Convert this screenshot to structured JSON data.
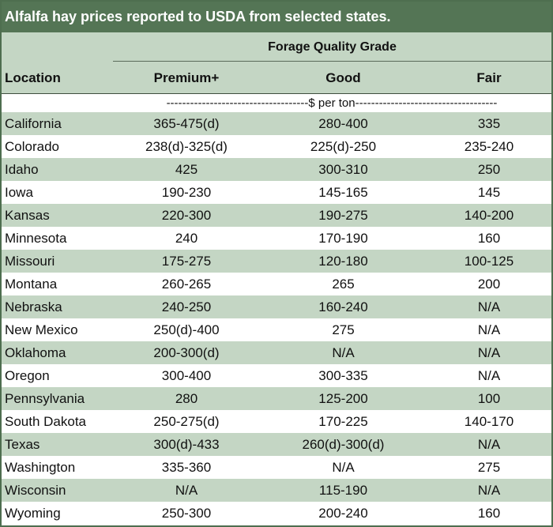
{
  "title": "Alfalfa hay prices reported to USDA from selected states.",
  "header": {
    "group": "Forage Quality Grade",
    "location": "Location",
    "columns": [
      "Premium+",
      "Good",
      "Fair"
    ]
  },
  "units": "------------------------------------$ per ton------------------------------------",
  "rows": [
    {
      "location": "California",
      "premium": "365-475(d)",
      "good": "280-400",
      "fair": "335"
    },
    {
      "location": "Colorado",
      "premium": "238(d)-325(d)",
      "good": "225(d)-250",
      "fair": "235-240"
    },
    {
      "location": "Idaho",
      "premium": "425",
      "good": "300-310",
      "fair": "250"
    },
    {
      "location": "Iowa",
      "premium": "190-230",
      "good": "145-165",
      "fair": "145"
    },
    {
      "location": "Kansas",
      "premium": "220-300",
      "good": "190-275",
      "fair": "140-200"
    },
    {
      "location": "Minnesota",
      "premium": "240",
      "good": "170-190",
      "fair": "160"
    },
    {
      "location": "Missouri",
      "premium": "175-275",
      "good": "120-180",
      "fair": "100-125"
    },
    {
      "location": "Montana",
      "premium": "260-265",
      "good": "265",
      "fair": "200"
    },
    {
      "location": "Nebraska",
      "premium": "240-250",
      "good": "160-240",
      "fair": "N/A"
    },
    {
      "location": "New Mexico",
      "premium": "250(d)-400",
      "good": "275",
      "fair": "N/A"
    },
    {
      "location": "Oklahoma",
      "premium": "200-300(d)",
      "good": "N/A",
      "fair": "N/A"
    },
    {
      "location": "Oregon",
      "premium": "300-400",
      "good": "300-335",
      "fair": "N/A"
    },
    {
      "location": "Pennsylvania",
      "premium": "280",
      "good": "125-200",
      "fair": "100"
    },
    {
      "location": "South Dakota",
      "premium": "250-275(d)",
      "good": "170-225",
      "fair": "140-170"
    },
    {
      "location": "Texas",
      "premium": "300(d)-433",
      "good": "260(d)-300(d)",
      "fair": "N/A"
    },
    {
      "location": "Washington",
      "premium": "335-360",
      "good": "N/A",
      "fair": "275"
    },
    {
      "location": "Wisconsin",
      "premium": "N/A",
      "good": "115-190",
      "fair": "N/A"
    },
    {
      "location": "Wyoming",
      "premium": "250-300",
      "good": "200-240",
      "fair": "160"
    }
  ]
}
